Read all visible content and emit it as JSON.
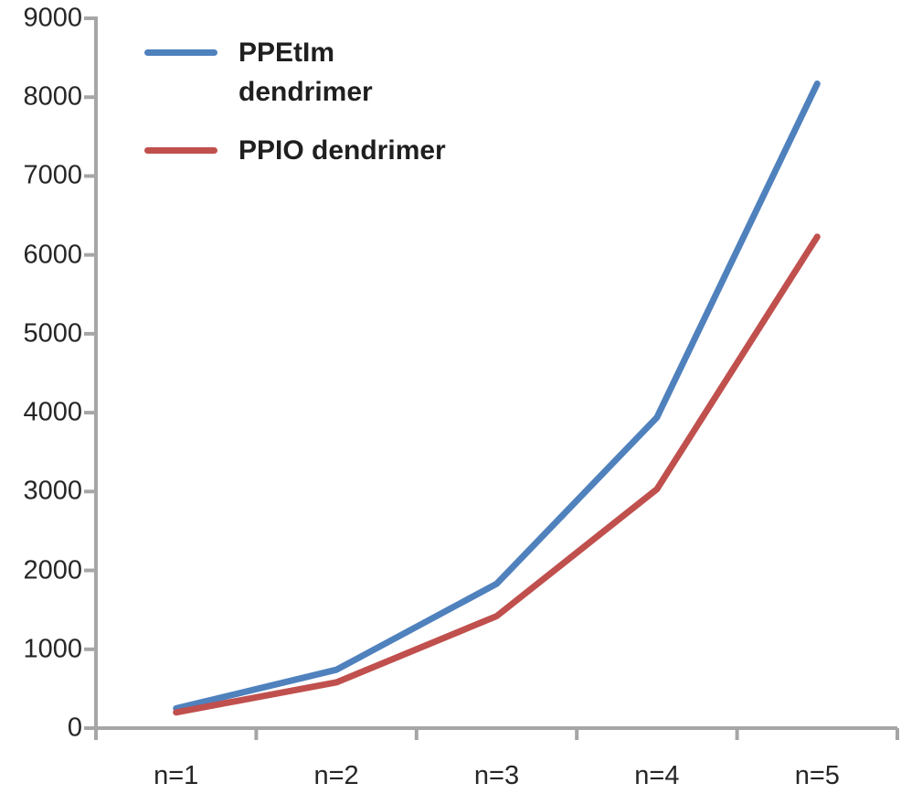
{
  "chart_data": {
    "type": "line",
    "title": "",
    "xlabel": "",
    "ylabel": "",
    "categories": [
      "n=1",
      "n=2",
      "n=3",
      "n=4",
      "n=5"
    ],
    "series": [
      {
        "name": "PPEtIm dendrimer",
        "color": "#4F81BD",
        "values": [
          250,
          740,
          1830,
          3940,
          8170
        ]
      },
      {
        "name": "PPIO dendrimer",
        "color": "#C0504D",
        "values": [
          200,
          580,
          1420,
          3030,
          6230
        ]
      }
    ],
    "ylim": [
      0,
      9000
    ],
    "y_tick_step": 1000,
    "y_tick_labels": [
      "0",
      "1000",
      "2000",
      "3000",
      "4000",
      "5000",
      "6000",
      "7000",
      "8000",
      "9000"
    ],
    "grid": false,
    "legend_position": "top-left",
    "axis_color": "#A6A6A6",
    "tick_label_color": "#262626",
    "line_width": 7
  },
  "legend": {
    "entries": [
      {
        "name": "PPEtIm dendrimer",
        "lines": [
          "PPEtIm",
          "dendrimer"
        ],
        "color": "#4F81BD"
      },
      {
        "name": "PPIO dendrimer",
        "lines": [
          "PPIO dendrimer"
        ],
        "color": "#C0504D"
      }
    ]
  }
}
